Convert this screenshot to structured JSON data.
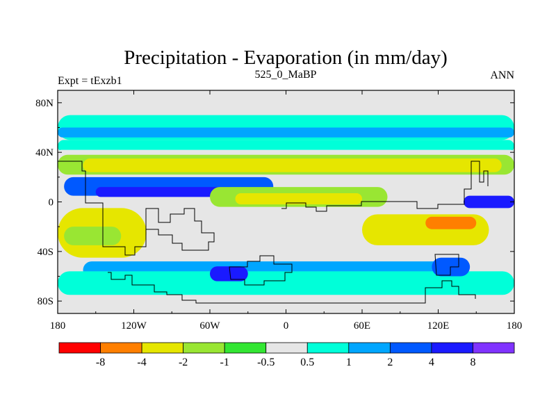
{
  "chart_data": {
    "type": "heatmap",
    "title": "Precipitation - Evaporation (in mm/day)",
    "left_label": "Expt = tExzb1",
    "center_label": "525_0_MaBP",
    "right_label": "ANN",
    "x_ticks": [
      "180",
      "120W",
      "60W",
      "0",
      "60E",
      "120E",
      "180"
    ],
    "x_tick_values": [
      -180,
      -120,
      -60,
      0,
      60,
      120,
      180
    ],
    "y_ticks": [
      "80N",
      "40N",
      "0",
      "40S",
      "80S"
    ],
    "y_tick_values": [
      80,
      40,
      0,
      -40,
      -80
    ],
    "xlim": [
      -180,
      180
    ],
    "ylim": [
      -90,
      90
    ],
    "colorbar": {
      "colors": [
        "#ff0000",
        "#ff7f00",
        "#e6e600",
        "#99e633",
        "#33e633",
        "#e6e6e6",
        "#00ffd9",
        "#00a6ff",
        "#0059ff",
        "#1a1aff",
        "#8033ff"
      ],
      "labels": [
        "-8",
        "-4",
        "-2",
        "-1",
        "-0.5",
        "0.5",
        "1",
        "2",
        "4",
        "8"
      ]
    },
    "bands": [
      {
        "lon": [
          -180,
          180
        ],
        "lat": [
          76,
          70
        ],
        "level": 5
      },
      {
        "lon": [
          -180,
          180
        ],
        "lat": [
          70,
          50
        ],
        "level": 6
      },
      {
        "lon": [
          -180,
          180
        ],
        "lat": [
          60,
          52
        ],
        "level": 7
      },
      {
        "lon": [
          -180,
          180
        ],
        "lat": [
          50,
          40
        ],
        "level": 6
      },
      {
        "lon": [
          -180,
          180
        ],
        "lat": [
          42,
          36
        ],
        "level": 5
      },
      {
        "lon": [
          -180,
          180
        ],
        "lat": [
          38,
          22
        ],
        "level": 3
      },
      {
        "lon": [
          -160,
          170
        ],
        "lat": [
          35,
          24
        ],
        "level": 2
      },
      {
        "lon": [
          -175,
          -10
        ],
        "lat": [
          20,
          5
        ],
        "level": 8
      },
      {
        "lon": [
          -150,
          -40
        ],
        "lat": [
          12,
          4
        ],
        "level": 9
      },
      {
        "lon": [
          -60,
          80
        ],
        "lat": [
          12,
          -4
        ],
        "level": 3
      },
      {
        "lon": [
          -40,
          60
        ],
        "lat": [
          7,
          -2
        ],
        "level": 2
      },
      {
        "lon": [
          -180,
          -110
        ],
        "lat": [
          -5,
          -45
        ],
        "level": 2
      },
      {
        "lon": [
          -175,
          -130
        ],
        "lat": [
          -20,
          -35
        ],
        "level": 3
      },
      {
        "lon": [
          60,
          160
        ],
        "lat": [
          -10,
          -35
        ],
        "level": 2
      },
      {
        "lon": [
          110,
          150
        ],
        "lat": [
          -12,
          -22
        ],
        "level": 1
      },
      {
        "lon": [
          -160,
          140
        ],
        "lat": [
          -48,
          -62
        ],
        "level": 7
      },
      {
        "lon": [
          -180,
          180
        ],
        "lat": [
          -56,
          -75
        ],
        "level": 6
      },
      {
        "lon": [
          -60,
          -30
        ],
        "lat": [
          -52,
          -64
        ],
        "level": 9
      },
      {
        "lon": [
          115,
          145
        ],
        "lat": [
          -45,
          -60
        ],
        "level": 8
      },
      {
        "lon": [
          140,
          180
        ],
        "lat": [
          -5,
          5
        ],
        "level": 9
      }
    ]
  }
}
